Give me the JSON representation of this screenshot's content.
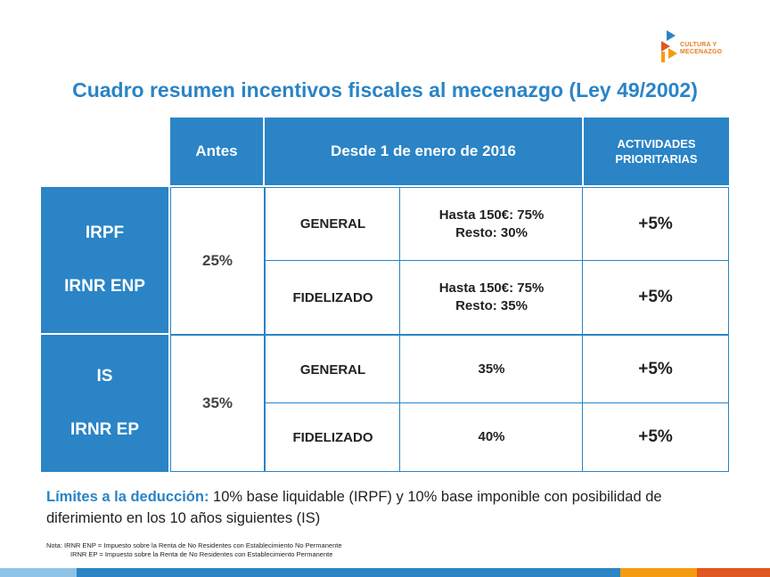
{
  "logo": {
    "line1": "CULTURA Y",
    "line2": "MECENAZGO"
  },
  "title": "Cuadro resumen incentivos fiscales al mecenazgo (Ley 49/2002)",
  "table": {
    "headers": {
      "antes": "Antes",
      "desde": "Desde 1 de enero de 2016",
      "actividades_line1": "ACTIVIDADES",
      "actividades_line2": "PRIORITARIAS"
    },
    "groups": [
      {
        "label1": "IRPF",
        "label2": "IRNR ENP",
        "antes": "25%",
        "rows": [
          {
            "type": "GENERAL",
            "line1": "Hasta 150€: 75%",
            "line2": "Resto: 30%",
            "extra": "+5%"
          },
          {
            "type": "FIDELIZADO",
            "line1": "Hasta 150€: 75%",
            "line2": "Resto: 35%",
            "extra": "+5%"
          }
        ]
      },
      {
        "label1": "IS",
        "label2": "IRNR EP",
        "antes": "35%",
        "rows": [
          {
            "type": "GENERAL",
            "line1": "35%",
            "extra": "+5%"
          },
          {
            "type": "FIDELIZADO",
            "line1": "40%",
            "extra": "+5%"
          }
        ]
      }
    ]
  },
  "limits": {
    "label": "Límites a la deducción:",
    "text": " 10% base liquidable (IRPF) y 10% base imponible con posibilidad de diferimiento en los 10 años siguientes (IS)"
  },
  "note": {
    "line1": "Nota:  IRNR ENP  = Impuesto sobre la Renta de No Residentes con Establecimiento No Permanente",
    "line2": "IRNR EP = Impuesto sobre la Renta de No Residentes con Establecimiento Permanente"
  },
  "colors": {
    "accent": "#2a84c6",
    "stripe": [
      "#8fc3e8",
      "#2a84c6",
      "#f39c12",
      "#e0571f"
    ]
  }
}
